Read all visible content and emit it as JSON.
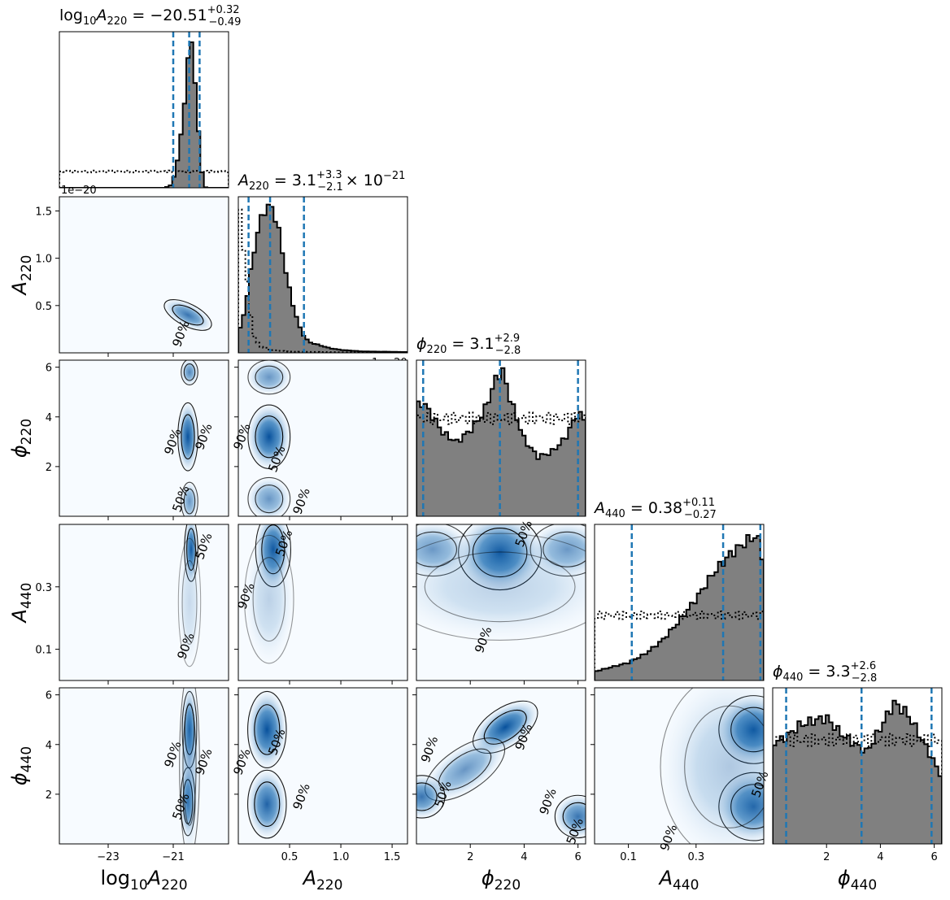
{
  "chart_data": {
    "type": "corner",
    "params": [
      {
        "key": "logA220",
        "xlabel": "log10A220",
        "title": {
          "sym": "log",
          "sub1": "10",
          "sym2": "A",
          "sub2": "220",
          "value": "−20.51",
          "plus": "+0.32",
          "minus": "−0.49",
          "suffix": ""
        },
        "range": [
          -24.5,
          -19.3
        ],
        "ticks": [
          -23,
          -21
        ],
        "tick_labels": [
          "−23",
          "−21"
        ],
        "offset": "",
        "quantiles": [
          -21.0,
          -20.51,
          -20.19
        ],
        "posterior": [
          [
            -21.3,
            0.0
          ],
          [
            -21.1,
            0.01
          ],
          [
            -21.0,
            0.06
          ],
          [
            -20.9,
            0.14
          ],
          [
            -20.8,
            0.28
          ],
          [
            -20.7,
            0.48
          ],
          [
            -20.6,
            0.72
          ],
          [
            -20.5,
            0.95
          ],
          [
            -20.45,
            1.0
          ],
          [
            -20.4,
            0.97
          ],
          [
            -20.3,
            0.62
          ],
          [
            -20.2,
            0.3
          ],
          [
            -20.1,
            0.08
          ],
          [
            -20.0,
            0.0
          ]
        ],
        "prior": 0.11
      },
      {
        "key": "A220",
        "xlabel": "A220",
        "title": {
          "sym": "",
          "sub1": "",
          "sym2": "A",
          "sub2": "220",
          "value": "3.1",
          "plus": "+3.3",
          "minus": "−2.1",
          "suffix": "× 10",
          "suffix_exp": "−21"
        },
        "range": [
          0.0,
          1.65
        ],
        "ticks": [
          0.5,
          1.0,
          1.5
        ],
        "tick_labels": [
          "0.5",
          "1.0",
          "1.5"
        ],
        "offset": "1e−20",
        "quantiles": [
          0.1,
          0.31,
          0.64
        ],
        "posterior": [
          [
            0.0,
            0.12
          ],
          [
            0.05,
            0.25
          ],
          [
            0.1,
            0.45
          ],
          [
            0.15,
            0.68
          ],
          [
            0.2,
            0.85
          ],
          [
            0.25,
            0.96
          ],
          [
            0.3,
            1.0
          ],
          [
            0.35,
            0.95
          ],
          [
            0.4,
            0.8
          ],
          [
            0.45,
            0.6
          ],
          [
            0.5,
            0.42
          ],
          [
            0.55,
            0.28
          ],
          [
            0.6,
            0.17
          ],
          [
            0.65,
            0.1
          ],
          [
            0.7,
            0.07
          ],
          [
            0.8,
            0.05
          ],
          [
            0.9,
            0.03
          ],
          [
            1.0,
            0.02
          ],
          [
            1.2,
            0.01
          ],
          [
            1.4,
            0.008
          ],
          [
            1.65,
            0.005
          ]
        ],
        "prior": [
          [
            0.0,
            1.0
          ],
          [
            0.05,
            0.75
          ],
          [
            0.1,
            0.35
          ],
          [
            0.15,
            0.12
          ],
          [
            0.2,
            0.05
          ],
          [
            0.3,
            0.02
          ],
          [
            0.5,
            0.008
          ],
          [
            1.0,
            0.004
          ],
          [
            1.65,
            0.003
          ]
        ]
      },
      {
        "key": "phi220",
        "xlabel": "phi220",
        "title": {
          "sym": "",
          "sub1": "",
          "sym2": "ϕ",
          "sub2": "220",
          "value": "3.1",
          "plus": "+2.9",
          "minus": "−2.8",
          "suffix": ""
        },
        "range": [
          0.0,
          6.2832
        ],
        "ticks": [
          2,
          4,
          6
        ],
        "tick_labels": [
          "2",
          "4",
          "6"
        ],
        "offset": "",
        "quantiles": [
          0.25,
          3.1,
          6.0
        ],
        "posterior": [
          [
            0.0,
            0.74
          ],
          [
            0.25,
            0.77
          ],
          [
            0.5,
            0.7
          ],
          [
            1.0,
            0.56
          ],
          [
            1.5,
            0.5
          ],
          [
            2.0,
            0.58
          ],
          [
            2.5,
            0.7
          ],
          [
            3.0,
            0.95
          ],
          [
            3.2,
            0.98
          ],
          [
            3.5,
            0.78
          ],
          [
            4.0,
            0.52
          ],
          [
            4.5,
            0.4
          ],
          [
            5.0,
            0.43
          ],
          [
            5.5,
            0.52
          ],
          [
            6.0,
            0.7
          ],
          [
            6.2832,
            0.64
          ]
        ],
        "prior": 0.66
      },
      {
        "key": "A440",
        "xlabel": "A440",
        "title": {
          "sym": "",
          "sub1": "",
          "sym2": "A",
          "sub2": "440",
          "value": "0.38",
          "plus": "+0.11",
          "minus": "−0.27",
          "suffix": ""
        },
        "range": [
          0.0,
          0.5
        ],
        "ticks": [
          0.1,
          0.3
        ],
        "tick_labels": [
          "0.1",
          "0.3"
        ],
        "offset": "",
        "quantiles": [
          0.11,
          0.38,
          0.49
        ],
        "posterior": [
          [
            0.0,
            0.06
          ],
          [
            0.05,
            0.09
          ],
          [
            0.1,
            0.12
          ],
          [
            0.15,
            0.18
          ],
          [
            0.2,
            0.27
          ],
          [
            0.25,
            0.4
          ],
          [
            0.3,
            0.55
          ],
          [
            0.35,
            0.72
          ],
          [
            0.4,
            0.85
          ],
          [
            0.45,
            0.94
          ],
          [
            0.48,
            0.98
          ],
          [
            0.5,
            0.8
          ]
        ],
        "prior": 0.44
      },
      {
        "key": "phi440",
        "xlabel": "phi440",
        "title": {
          "sym": "",
          "sub1": "",
          "sym2": "ϕ",
          "sub2": "440",
          "value": "3.3",
          "plus": "+2.6",
          "minus": "−2.8",
          "suffix": ""
        },
        "range": [
          0.0,
          6.2832
        ],
        "ticks": [
          2,
          4,
          6
        ],
        "tick_labels": [
          "2",
          "4",
          "6"
        ],
        "offset": "",
        "quantiles": [
          0.5,
          3.3,
          5.9
        ],
        "posterior": [
          [
            0.0,
            0.68
          ],
          [
            0.5,
            0.72
          ],
          [
            1.0,
            0.8
          ],
          [
            1.5,
            0.83
          ],
          [
            2.0,
            0.85
          ],
          [
            2.5,
            0.75
          ],
          [
            3.0,
            0.68
          ],
          [
            3.5,
            0.62
          ],
          [
            4.0,
            0.78
          ],
          [
            4.5,
            0.95
          ],
          [
            5.0,
            0.88
          ],
          [
            5.5,
            0.72
          ],
          [
            6.0,
            0.55
          ],
          [
            6.2832,
            0.45
          ]
        ],
        "prior": 0.7
      }
    ],
    "pairs": [
      {
        "row": 1,
        "col": 0,
        "labels": [
          {
            "text": "90%",
            "x": -20.75,
            "y": 0.2
          }
        ],
        "blobs": [
          {
            "x": -20.55,
            "y": 0.4,
            "sx": 0.2,
            "sy": 0.16,
            "rot": -1.1,
            "w": 0.8
          }
        ]
      },
      {
        "row": 2,
        "col": 0,
        "labels": [
          {
            "text": "90%",
            "x": -21.0,
            "y": 3.0
          },
          {
            "text": "90%",
            "x": -20.05,
            "y": 3.2
          },
          {
            "text": "50%",
            "x": -20.75,
            "y": 0.7
          }
        ],
        "blobs": [
          {
            "x": -20.55,
            "y": 3.2,
            "sx": 0.18,
            "sy": 0.8,
            "rot": 0,
            "w": 1.0
          },
          {
            "x": -20.5,
            "y": 5.8,
            "sx": 0.15,
            "sy": 0.3,
            "rot": 0,
            "w": 0.7
          },
          {
            "x": -20.5,
            "y": 0.6,
            "sx": 0.15,
            "sy": 0.45,
            "rot": 0,
            "w": 0.6
          }
        ]
      },
      {
        "row": 2,
        "col": 1,
        "labels": [
          {
            "text": "90%",
            "x": 0.04,
            "y": 3.2
          },
          {
            "text": "50%",
            "x": 0.38,
            "y": 2.3
          },
          {
            "text": "90%",
            "x": 0.62,
            "y": 0.6
          }
        ],
        "blobs": [
          {
            "x": 0.3,
            "y": 3.2,
            "sx": 0.12,
            "sy": 0.75,
            "rot": 0,
            "w": 1.0
          },
          {
            "x": 0.3,
            "y": 5.6,
            "sx": 0.12,
            "sy": 0.4,
            "rot": 0,
            "w": 0.6
          },
          {
            "x": 0.3,
            "y": 0.7,
            "sx": 0.12,
            "sy": 0.5,
            "rot": 0,
            "w": 0.6
          }
        ]
      },
      {
        "row": 3,
        "col": 0,
        "labels": [
          {
            "text": "50%",
            "x": -20.05,
            "y": 0.43
          },
          {
            "text": "90%",
            "x": -20.6,
            "y": 0.11
          }
        ],
        "blobs": [
          {
            "x": -20.45,
            "y": 0.42,
            "sx": 0.12,
            "sy": 0.06,
            "rot": 0,
            "w": 1.0
          },
          {
            "x": -20.5,
            "y": 0.25,
            "sx": 0.2,
            "sy": 0.12,
            "rot": 0,
            "w": 0.2
          }
        ]
      },
      {
        "row": 3,
        "col": 1,
        "labels": [
          {
            "text": "50%",
            "x": 0.45,
            "y": 0.44
          },
          {
            "text": "90%",
            "x": 0.08,
            "y": 0.27
          }
        ],
        "blobs": [
          {
            "x": 0.34,
            "y": 0.42,
            "sx": 0.1,
            "sy": 0.07,
            "rot": 0,
            "w": 1.0
          },
          {
            "x": 0.3,
            "y": 0.26,
            "sx": 0.14,
            "sy": 0.12,
            "rot": 0,
            "w": 0.25
          }
        ]
      },
      {
        "row": 3,
        "col": 2,
        "labels": [
          {
            "text": "50%",
            "x": 4.0,
            "y": 0.47
          },
          {
            "text": "90%",
            "x": 2.5,
            "y": 0.13
          }
        ],
        "blobs": [
          {
            "x": 3.1,
            "y": 0.41,
            "sx": 0.9,
            "sy": 0.07,
            "rot": 0,
            "w": 1.0
          },
          {
            "x": 0.6,
            "y": 0.42,
            "sx": 0.8,
            "sy": 0.05,
            "rot": 0,
            "w": 0.6
          },
          {
            "x": 5.6,
            "y": 0.42,
            "sx": 0.8,
            "sy": 0.05,
            "rot": 0,
            "w": 0.6
          },
          {
            "x": 3.1,
            "y": 0.3,
            "sx": 2.5,
            "sy": 0.1,
            "rot": 0,
            "w": 0.25
          }
        ]
      },
      {
        "row": 4,
        "col": 0,
        "labels": [
          {
            "text": "90%",
            "x": -21.0,
            "y": 3.6
          },
          {
            "text": "90%",
            "x": -20.05,
            "y": 3.3
          },
          {
            "text": "50%",
            "x": -20.75,
            "y": 1.5
          }
        ],
        "blobs": [
          {
            "x": -20.5,
            "y": 4.6,
            "sx": 0.13,
            "sy": 0.9,
            "rot": 0,
            "w": 0.9
          },
          {
            "x": -20.55,
            "y": 1.7,
            "sx": 0.13,
            "sy": 0.8,
            "rot": 0,
            "w": 0.8
          },
          {
            "x": -20.5,
            "y": 3.2,
            "sx": 0.18,
            "sy": 2.2,
            "rot": 0,
            "w": 0.4
          }
        ]
      },
      {
        "row": 4,
        "col": 1,
        "labels": [
          {
            "text": "90%",
            "x": 0.04,
            "y": 3.3
          },
          {
            "text": "50%",
            "x": 0.38,
            "y": 4.1
          },
          {
            "text": "90%",
            "x": 0.62,
            "y": 1.9
          }
        ],
        "blobs": [
          {
            "x": 0.28,
            "y": 4.6,
            "sx": 0.11,
            "sy": 0.9,
            "rot": 0,
            "w": 1.0
          },
          {
            "x": 0.28,
            "y": 1.6,
            "sx": 0.11,
            "sy": 0.8,
            "rot": 0,
            "w": 0.9
          }
        ]
      },
      {
        "row": 4,
        "col": 2,
        "labels": [
          {
            "text": "90%",
            "x": 0.5,
            "y": 3.8
          },
          {
            "text": "90%",
            "x": 4.0,
            "y": 4.3
          },
          {
            "text": "50%",
            "x": 1.0,
            "y": 2.0
          },
          {
            "text": "90%",
            "x": 4.9,
            "y": 1.7
          },
          {
            "text": "50%",
            "x": 5.9,
            "y": 0.5
          }
        ],
        "blobs": [
          {
            "x": 3.3,
            "y": 4.7,
            "sx": 0.8,
            "sy": 0.45,
            "rot": -0.6,
            "w": 1.0
          },
          {
            "x": 1.8,
            "y": 3.0,
            "sx": 1.0,
            "sy": 0.5,
            "rot": -0.6,
            "w": 0.6
          },
          {
            "x": 0.2,
            "y": 1.9,
            "sx": 0.5,
            "sy": 0.5,
            "rot": 0,
            "w": 0.8
          },
          {
            "x": 6.0,
            "y": 1.1,
            "sx": 0.5,
            "sy": 0.5,
            "rot": 0,
            "w": 0.8
          }
        ]
      },
      {
        "row": 4,
        "col": 3,
        "labels": [
          {
            "text": "90%",
            "x": 0.22,
            "y": 0.25
          },
          {
            "text": "50%",
            "x": 0.49,
            "y": 2.4
          }
        ],
        "blobs": [
          {
            "x": 0.47,
            "y": 4.6,
            "sx": 0.06,
            "sy": 0.8,
            "rot": 0,
            "w": 1.0
          },
          {
            "x": 0.47,
            "y": 1.5,
            "sx": 0.06,
            "sy": 0.8,
            "rot": 0,
            "w": 0.9
          },
          {
            "x": 0.4,
            "y": 3.1,
            "sx": 0.12,
            "sy": 2.2,
            "rot": 0,
            "w": 0.3
          }
        ]
      }
    ],
    "row_labels": [
      "",
      "A220",
      "phi220",
      "A440",
      "phi440"
    ],
    "colors": {
      "hist_fill": "#808080",
      "quantile": "#1f77b4",
      "density_light": "#f7fbff",
      "density_dark": "#08519c"
    }
  }
}
